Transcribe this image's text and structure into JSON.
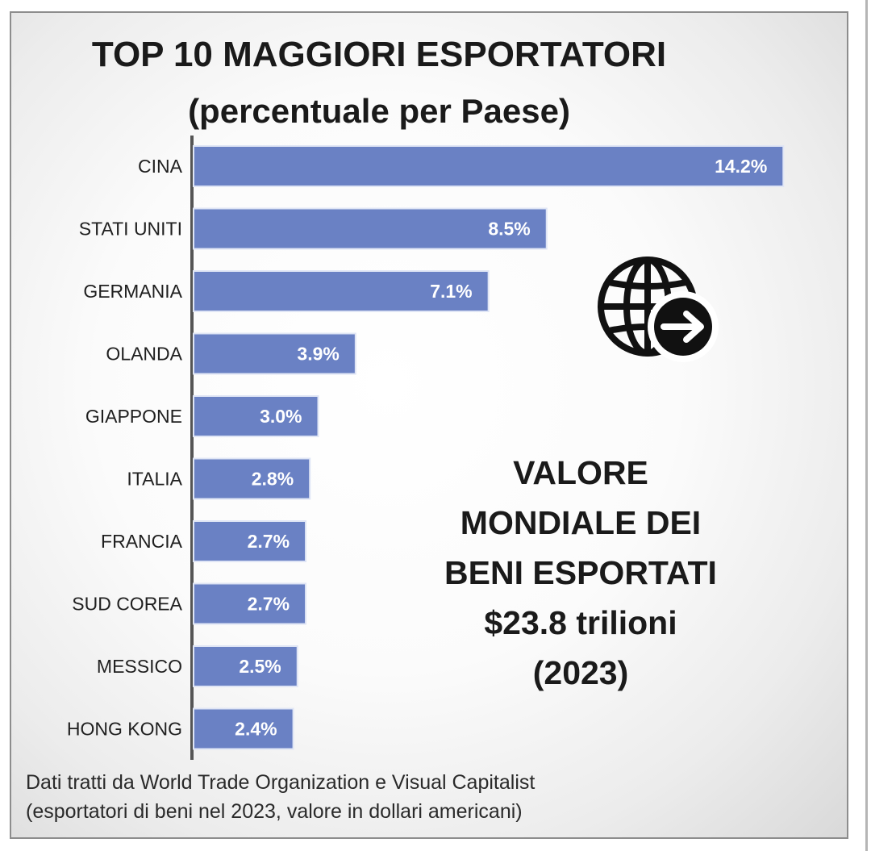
{
  "chart_data": {
    "type": "bar",
    "orientation": "horizontal",
    "title": "TOP 10 MAGGIORI ESPORTATORI",
    "subtitle": "(percentuale per Paese)",
    "categories": [
      "CINA",
      "STATI UNITI",
      "GERMANIA",
      "OLANDA",
      "GIAPPONE",
      "ITALIA",
      "FRANCIA",
      "SUD COREA",
      "MESSICO",
      "HONG KONG"
    ],
    "values": [
      14.2,
      8.5,
      7.1,
      3.9,
      3.0,
      2.8,
      2.7,
      2.7,
      2.5,
      2.4
    ],
    "value_labels": [
      "14.2%",
      "8.5%",
      "7.1%",
      "3.9%",
      "3.0%",
      "2.8%",
      "2.7%",
      "2.7%",
      "2.5%",
      "2.4%"
    ],
    "bar_color": "#6a81c4",
    "grid": false,
    "legend": "none"
  },
  "callout": {
    "lines": [
      "VALORE",
      "MONDIALE DEI",
      "BENI ESPORTATI",
      "$23.8 trilioni",
      "(2023)"
    ]
  },
  "source": {
    "line1": "Dati tratti da World Trade Organization e Visual Capitalist",
    "line2": "(esportatori di beni nel 2023, valore in dollari americani)"
  },
  "icon": "globe-arrow-icon"
}
